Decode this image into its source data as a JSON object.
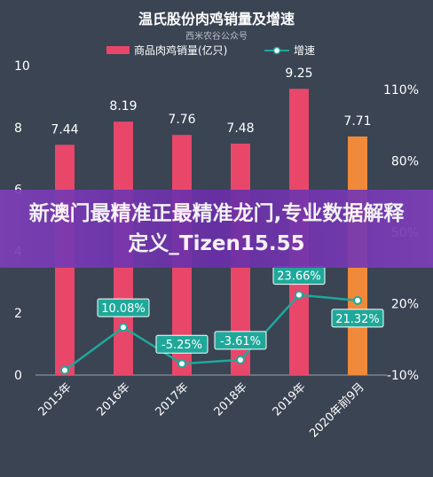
{
  "chart_data": {
    "type": "bar+line",
    "title": "温氏股份肉鸡销量及增速",
    "subtitle": "西米农谷公众号",
    "categories": [
      "2015年",
      "2016年",
      "2017年",
      "2018年",
      "2019年",
      "2020年前9月"
    ],
    "series": [
      {
        "name": "商品肉鸡销量(亿只)",
        "type": "bar",
        "values": [
          7.44,
          8.19,
          7.76,
          7.48,
          9.25,
          7.71
        ],
        "data_labels": [
          "7.44",
          "8.19",
          "7.76",
          "7.48",
          "9.25",
          "7.71"
        ],
        "colors": [
          "#e8476a",
          "#e8476a",
          "#e8476a",
          "#e8476a",
          "#e8476a",
          "#f08a3a"
        ]
      },
      {
        "name": "增速",
        "type": "line",
        "values": [
          -8.0,
          10.08,
          -5.25,
          -3.61,
          23.66,
          21.32
        ],
        "data_labels": [
          "",
          "10.08%",
          "-5.25%",
          "-3.61%",
          "23.66%",
          "21.32%"
        ],
        "color": "#1fa89a"
      }
    ],
    "left_axis": {
      "ylim": [
        0,
        10
      ],
      "ticks": [
        "0",
        "2",
        "4",
        "6",
        "8",
        "10"
      ]
    },
    "right_axis": {
      "ylim": [
        -10,
        120
      ],
      "ticks": [
        "-10%",
        "20%",
        "50%",
        "80%",
        "110%"
      ]
    },
    "legend_position": "top"
  },
  "overlay": {
    "text": "新澳门最精准正最精准龙门,专业数据解释定义_Tizen15.55"
  }
}
